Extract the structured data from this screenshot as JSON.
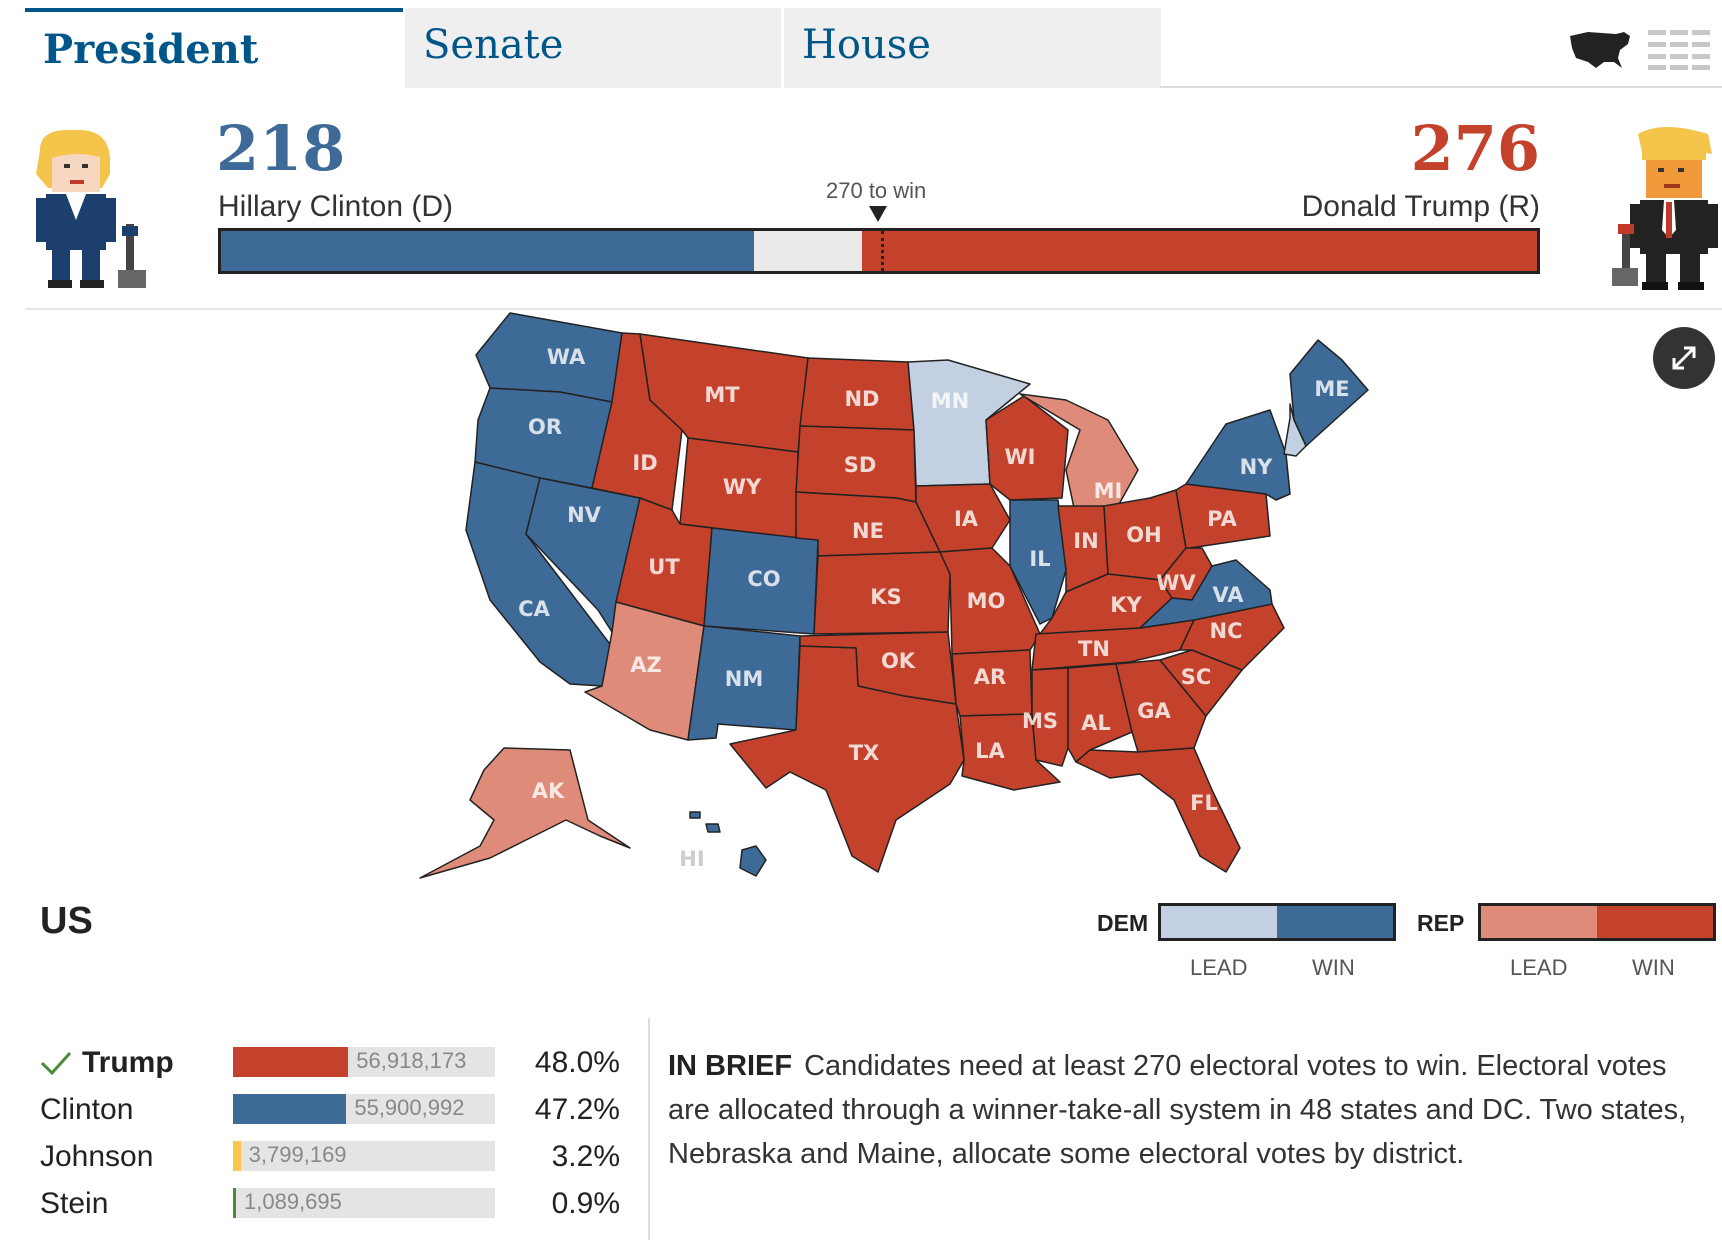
{
  "tabs": [
    {
      "label": "President",
      "active": true
    },
    {
      "label": "Senate",
      "active": false
    },
    {
      "label": "House",
      "active": false
    }
  ],
  "views": {
    "map_icon": "us-map-icon",
    "list_icon": "list-icon"
  },
  "score": {
    "dem": {
      "votes": "218",
      "name": "Hillary Clinton (D)",
      "color": "#3d6a97",
      "avatar": "clinton-avatar-icon"
    },
    "rep": {
      "votes": "276",
      "name": "Donald Trump (R)",
      "color": "#c4422b",
      "avatar": "trump-avatar-icon"
    },
    "to_win": "270 to win",
    "bar": {
      "total": 538,
      "dem_win": 218,
      "undecided": 44,
      "rep_win": 276
    }
  },
  "map": {
    "expand_icon": "expand-icon",
    "colors": {
      "dem_win": "#3d6a97",
      "dem_lead": "#c3d0e1",
      "rep_win": "#c4422b",
      "rep_lead": "#df8b7a"
    },
    "states": {
      "WA": "dem_win",
      "OR": "dem_win",
      "CA": "dem_win",
      "NV": "dem_win",
      "CO": "dem_win",
      "NM": "dem_win",
      "IL": "dem_win",
      "VA": "dem_win",
      "NY": "dem_win",
      "ME": "dem_win",
      "HI": "dem_win",
      "MN": "dem_lead",
      "NH": "dem_lead",
      "AZ": "rep_lead",
      "MI": "rep_lead",
      "AK": "rep_lead",
      "MT": "rep_win",
      "ID": "rep_win",
      "WY": "rep_win",
      "UT": "rep_win",
      "ND": "rep_win",
      "SD": "rep_win",
      "NE": "rep_win",
      "KS": "rep_win",
      "OK": "rep_win",
      "TX": "rep_win",
      "IA": "rep_win",
      "MO": "rep_win",
      "AR": "rep_win",
      "LA": "rep_win",
      "WI": "rep_win",
      "IN": "rep_win",
      "OH": "rep_win",
      "KY": "rep_win",
      "TN": "rep_win",
      "MS": "rep_win",
      "AL": "rep_win",
      "GA": "rep_win",
      "FL": "rep_win",
      "SC": "rep_win",
      "NC": "rep_win",
      "WV": "rep_win",
      "PA": "rep_win"
    }
  },
  "legend": {
    "region": "US",
    "dem_label": "DEM",
    "rep_label": "REP",
    "lead_label": "LEAD",
    "win_label": "WIN"
  },
  "results": [
    {
      "name": "Trump",
      "winner": true,
      "votes": "56,918,173",
      "pct": "48.0%",
      "share": 0.48,
      "color": "#c4422b"
    },
    {
      "name": "Clinton",
      "winner": false,
      "votes": "55,900,992",
      "pct": "47.2%",
      "share": 0.472,
      "color": "#3d6a97"
    },
    {
      "name": "Johnson",
      "winner": false,
      "votes": "3,799,169",
      "pct": "3.2%",
      "share": 0.032,
      "color": "#fcc44d"
    },
    {
      "name": "Stein",
      "winner": false,
      "votes": "1,089,695",
      "pct": "0.9%",
      "share": 0.009,
      "color": "#4a8a3a"
    }
  ],
  "brief": {
    "label": "IN BRIEF",
    "text": "Candidates need at least 270 electoral votes to win. Electoral votes are allocated through a winner-take-all system in 48 states and DC. Two states, Nebraska and Maine, allocate some electoral votes by district."
  }
}
